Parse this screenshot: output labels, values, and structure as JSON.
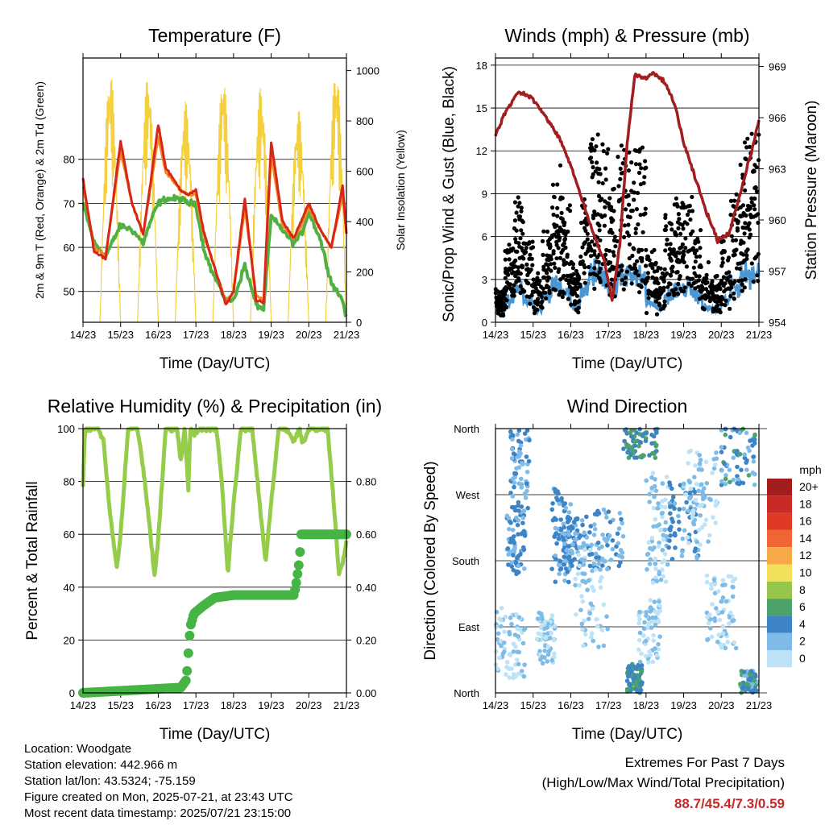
{
  "x_ticks": [
    "14/23",
    "15/23",
    "16/23",
    "17/23",
    "18/23",
    "19/23",
    "20/23",
    "21/23"
  ],
  "x_label": "Time (Day/UTC)",
  "chart_data": [
    {
      "type": "line",
      "title": "Temperature (F)",
      "xlabel": "Time (Day/UTC)",
      "ylabel": "2m & 9m T (Red, Orange) & 2m Td (Green)",
      "y2label": "Solar Insolation (Yellow)",
      "ylim": [
        43,
        103
      ],
      "yticks": [
        50,
        60,
        70,
        80
      ],
      "y2lim": [
        0,
        1050
      ],
      "y2ticks": [
        0,
        200,
        400,
        600,
        800,
        1000
      ],
      "grid": true,
      "x_day": [
        14.0,
        14.3,
        14.6,
        15.0,
        15.3,
        15.6,
        15.8,
        16.0,
        16.2,
        16.6,
        16.8,
        17.0,
        17.2,
        17.4,
        17.8,
        18.0,
        18.3,
        18.6,
        18.8,
        19.0,
        19.3,
        19.6,
        19.8,
        20.0,
        20.3,
        20.6,
        20.9,
        21.0
      ],
      "series": [
        {
          "name": "2m T",
          "color": "#d62718",
          "axis": "left",
          "values": [
            75.5,
            59,
            57.5,
            84,
            70,
            63,
            75,
            88,
            78,
            73,
            72,
            73,
            64,
            58,
            47,
            50,
            71,
            48,
            47.5,
            84,
            66,
            62,
            66,
            70,
            64,
            60,
            74,
            63
          ]
        },
        {
          "name": "9m T",
          "color": "#f5891f",
          "axis": "left",
          "values": [
            74,
            60,
            58,
            82,
            70,
            63,
            74,
            85,
            77,
            73,
            72,
            72,
            63,
            58,
            47.5,
            50,
            69,
            49,
            48,
            81,
            65,
            62,
            65,
            69,
            64,
            60,
            72,
            63
          ]
        },
        {
          "name": "2m Td",
          "color": "#52b043",
          "axis": "left",
          "values": [
            70,
            61,
            58,
            65,
            64,
            61,
            66,
            70,
            71,
            71,
            70,
            70,
            60,
            55,
            48,
            48,
            56,
            47,
            46,
            67,
            64,
            61,
            63,
            68,
            62,
            52,
            48,
            44
          ]
        },
        {
          "name": "Solar Insolation",
          "color": "#f4d03f",
          "axis": "right",
          "daily_peaks": [
            1000,
            980,
            880,
            980,
            940,
            850,
            1010,
            1020
          ]
        }
      ]
    },
    {
      "type": "scatter",
      "title": "Winds (mph) & Pressure (mb)",
      "xlabel": "Time (Day/UTC)",
      "ylabel": "Sonic/Prop Wind & Gust (Blue, Black)",
      "y2label": "Station Pressure (Maroon)",
      "ylim": [
        0,
        18.5
      ],
      "yticks": [
        0,
        3,
        6,
        9,
        12,
        15,
        18
      ],
      "y2lim": [
        954,
        969.5
      ],
      "y2ticks": [
        954,
        957,
        960,
        963,
        966,
        969
      ],
      "grid": true,
      "pressure": {
        "name": "Station Pressure",
        "color": "#a21d1d",
        "x_day": [
          14.0,
          14.3,
          14.6,
          14.9,
          15.2,
          15.4,
          15.7,
          16.0,
          16.3,
          16.6,
          16.9,
          17.1,
          17.3,
          17.5,
          17.7,
          18.0,
          18.2,
          18.5,
          18.8,
          19.0,
          19.3,
          19.6,
          19.9,
          20.2,
          20.5,
          20.8,
          21.0
        ],
        "values": [
          965,
          966.5,
          967.5,
          967.3,
          966.5,
          965.8,
          964.8,
          963.2,
          961.2,
          959.2,
          957.5,
          955.2,
          958.5,
          964.5,
          968.5,
          968.3,
          968.6,
          968.1,
          966.5,
          964.5,
          962.5,
          960.5,
          958.8,
          959.2,
          961.5,
          964,
          965.8
        ]
      },
      "wind_activity": [
        0.1,
        0.35,
        0.55,
        0.35,
        0.15,
        0.4,
        0.7,
        0.55,
        0.2,
        0.55,
        0.9,
        0.85,
        0.6,
        0.85,
        0.95,
        0.8,
        0.3,
        0.2,
        0.45,
        0.55,
        0.6,
        0.45,
        0.2,
        0.15,
        0.35,
        0.6,
        0.85,
        0.9
      ],
      "series": [
        {
          "name": "Wind",
          "color": "#4a97d4"
        },
        {
          "name": "Gust",
          "color": "#000000"
        }
      ]
    },
    {
      "type": "line",
      "title": "Relative Humidity (%) & Precipitation (in)",
      "xlabel": "Time (Day/UTC)",
      "ylabel": "Percent & Total Rainfall",
      "ylim": [
        0,
        100
      ],
      "yticks": [
        0,
        20,
        40,
        60,
        80,
        100
      ],
      "y2lim": [
        0,
        1.0
      ],
      "y2ticks": [
        "0.00",
        "0.20",
        "0.40",
        "0.60",
        "0.80"
      ],
      "grid": true,
      "series": [
        {
          "name": "Relative Humidity",
          "color": "#96cc4b",
          "axis": "left",
          "x_day": [
            14.0,
            14.05,
            14.15,
            14.4,
            14.55,
            14.7,
            14.9,
            15.0,
            15.2,
            15.45,
            15.6,
            15.75,
            15.9,
            16.0,
            16.2,
            16.5,
            16.6,
            16.7,
            16.8,
            16.85,
            16.95,
            17.1,
            17.4,
            17.55,
            17.7,
            17.85,
            18.0,
            18.2,
            18.5,
            18.6,
            18.75,
            18.85,
            19.0,
            19.2,
            19.4,
            19.6,
            19.75,
            19.85,
            20.0,
            20.2,
            20.4,
            20.5,
            20.65,
            20.8,
            20.95,
            21.0
          ],
          "values": [
            78,
            100,
            100,
            100,
            95,
            70,
            47,
            60,
            100,
            100,
            85,
            66,
            44,
            58,
            100,
            100,
            88,
            100,
            77,
            100,
            98,
            100,
            100,
            100,
            78,
            45,
            72,
            100,
            100,
            85,
            64,
            49,
            72,
            100,
            100,
            95,
            100,
            94,
            100,
            100,
            100,
            100,
            74,
            45,
            52,
            58
          ]
        },
        {
          "name": "Total Precipitation",
          "color": "#46b445",
          "axis": "right",
          "x_day": [
            14.0,
            16.6,
            16.75,
            16.8,
            16.85,
            16.95,
            17.2,
            17.5,
            18.0,
            19.6,
            19.65,
            19.7,
            19.75,
            19.8,
            21.0
          ],
          "values": [
            0,
            0.02,
            0.05,
            0.15,
            0.25,
            0.3,
            0.33,
            0.36,
            0.37,
            0.37,
            0.4,
            0.45,
            0.5,
            0.6,
            0.6
          ]
        }
      ]
    },
    {
      "type": "scatter",
      "title": "Wind Direction",
      "xlabel": "Time (Day/UTC)",
      "ylabel": "Direction (Colored By Speed)",
      "ylim": [
        0,
        360
      ],
      "yticks": [
        "North",
        "East",
        "South",
        "West",
        "North"
      ],
      "grid": true,
      "clusters": [
        {
          "x": [
            14.0,
            14.8
          ],
          "dir": [
            20,
            120
          ],
          "speed": [
            0,
            2
          ]
        },
        {
          "x": [
            14.3,
            14.8
          ],
          "dir": [
            160,
            250
          ],
          "speed": [
            2,
            4
          ]
        },
        {
          "x": [
            14.4,
            14.9
          ],
          "dir": [
            250,
            360
          ],
          "speed": [
            2,
            4
          ]
        },
        {
          "x": [
            15.1,
            15.6
          ],
          "dir": [
            40,
            110
          ],
          "speed": [
            0,
            2
          ]
        },
        {
          "x": [
            15.5,
            16.0
          ],
          "dir": [
            150,
            280
          ],
          "speed": [
            2,
            5
          ]
        },
        {
          "x": [
            15.8,
            16.3
          ],
          "dir": [
            170,
            240
          ],
          "speed": [
            2,
            5
          ]
        },
        {
          "x": [
            16.3,
            17.4
          ],
          "dir": [
            170,
            250
          ],
          "speed": [
            1,
            4
          ]
        },
        {
          "x": [
            16.1,
            17.0
          ],
          "dir": [
            60,
            200
          ],
          "speed": [
            0,
            2
          ]
        },
        {
          "x": [
            17.4,
            18.3
          ],
          "dir": [
            320,
            360
          ],
          "speed": [
            3,
            7
          ]
        },
        {
          "x": [
            17.5,
            17.9
          ],
          "dir": [
            0,
            40
          ],
          "speed": [
            3,
            7
          ]
        },
        {
          "x": [
            17.8,
            18.4
          ],
          "dir": [
            40,
            130
          ],
          "speed": [
            0,
            2
          ]
        },
        {
          "x": [
            18.0,
            18.6
          ],
          "dir": [
            150,
            300
          ],
          "speed": [
            0,
            3
          ]
        },
        {
          "x": [
            18.6,
            19.4
          ],
          "dir": [
            180,
            290
          ],
          "speed": [
            2,
            5
          ]
        },
        {
          "x": [
            19.0,
            19.9
          ],
          "dir": [
            200,
            330
          ],
          "speed": [
            0,
            3
          ]
        },
        {
          "x": [
            19.6,
            20.4
          ],
          "dir": [
            60,
            160
          ],
          "speed": [
            0,
            2
          ]
        },
        {
          "x": [
            20.0,
            20.9
          ],
          "dir": [
            280,
            360
          ],
          "speed": [
            1,
            6
          ]
        },
        {
          "x": [
            20.5,
            20.95
          ],
          "dir": [
            0,
            30
          ],
          "speed": [
            2,
            6
          ]
        }
      ],
      "legend_title": "mph",
      "legend_labels": [
        "20+",
        "18",
        "16",
        "14",
        "12",
        "10",
        "8",
        "6",
        "4",
        "2",
        "0"
      ],
      "legend_colors": [
        "#a21d1d",
        "#c82a26",
        "#df3a26",
        "#ef6634",
        "#f7a94a",
        "#f3e05a",
        "#96c74c",
        "#4ba36a",
        "#3d84c6",
        "#7ebbe6",
        "#bfe3f6"
      ],
      "legend_placement": "right"
    }
  ],
  "info": {
    "location": "Location: Woodgate",
    "elevation": "Station elevation: 442.966 m",
    "latlon": "Station lat/lon: 43.5324; -75.159",
    "created": "Figure created on Mon, 2025-07-21, at 23:43 UTC",
    "timestamp": "Most recent data timestamp: 2025/07/21 23:15:00"
  },
  "extremes": {
    "title": "Extremes For Past 7 Days",
    "subtitle": "(High/Low/Max Wind/Total Precipitation)",
    "values": "88.7/45.4/7.3/0.59"
  }
}
